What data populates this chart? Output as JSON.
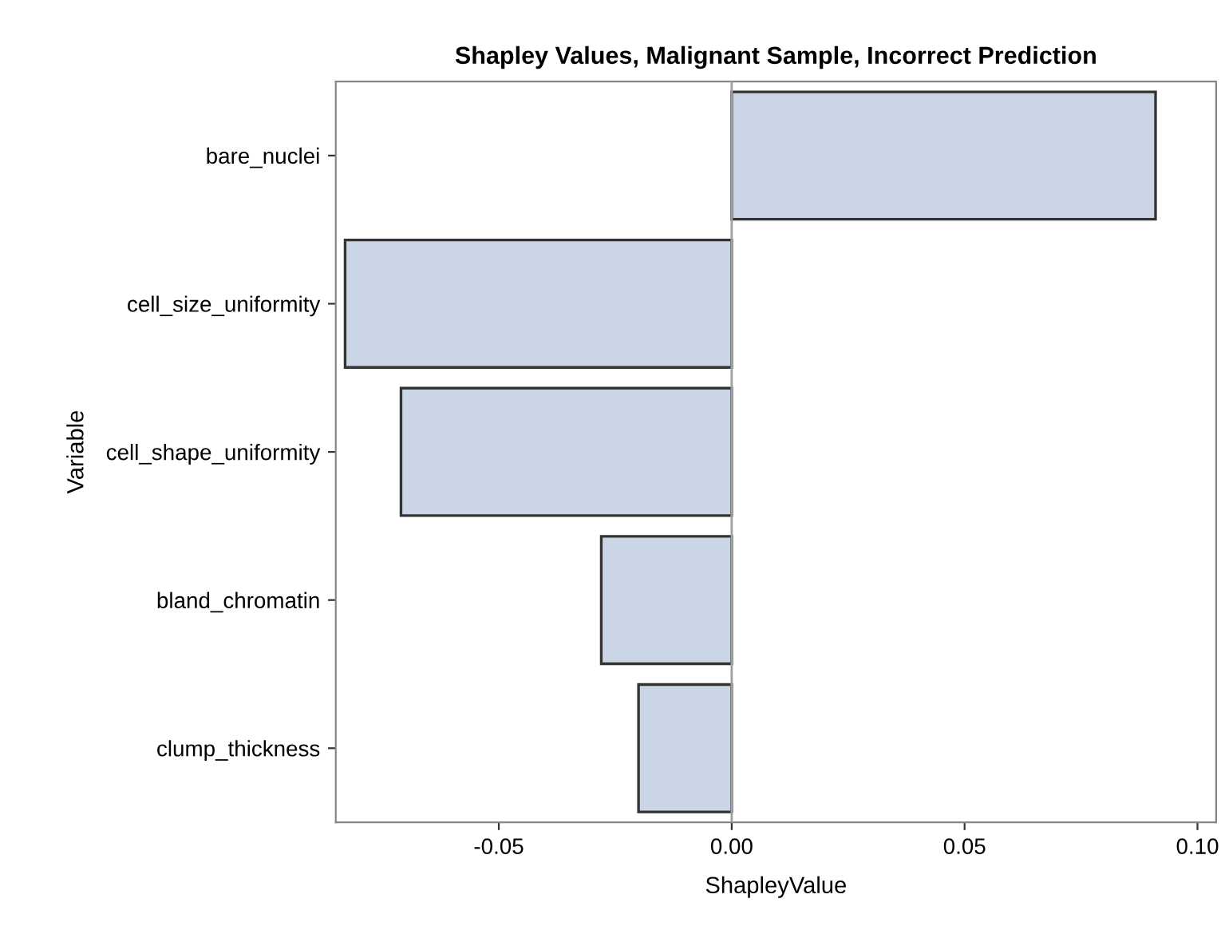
{
  "chart_data": {
    "type": "bar",
    "orientation": "horizontal",
    "title": "Shapley Values, Malignant Sample, Incorrect Prediction",
    "xlabel": "ShapleyValue",
    "ylabel": "Variable",
    "categories": [
      "bare_nuclei",
      "cell_size_uniformity",
      "cell_shape_uniformity",
      "bland_chromatin",
      "clump_thickness"
    ],
    "values": [
      0.091,
      -0.083,
      -0.071,
      -0.028,
      -0.02
    ],
    "color": "#cad5e5",
    "xlim": [
      -0.085,
      0.104
    ],
    "xticks": [
      {
        "value": -0.05,
        "label": "-0.05"
      },
      {
        "value": 0,
        "label": "0.00"
      },
      {
        "value": 0.05,
        "label": "0.05"
      },
      {
        "value": 0.1,
        "label": "0.10"
      }
    ],
    "ref_lines": [
      {
        "axis": "x",
        "value": 0,
        "color": "#a0a0a0"
      }
    ],
    "grid": false,
    "legend": false
  }
}
